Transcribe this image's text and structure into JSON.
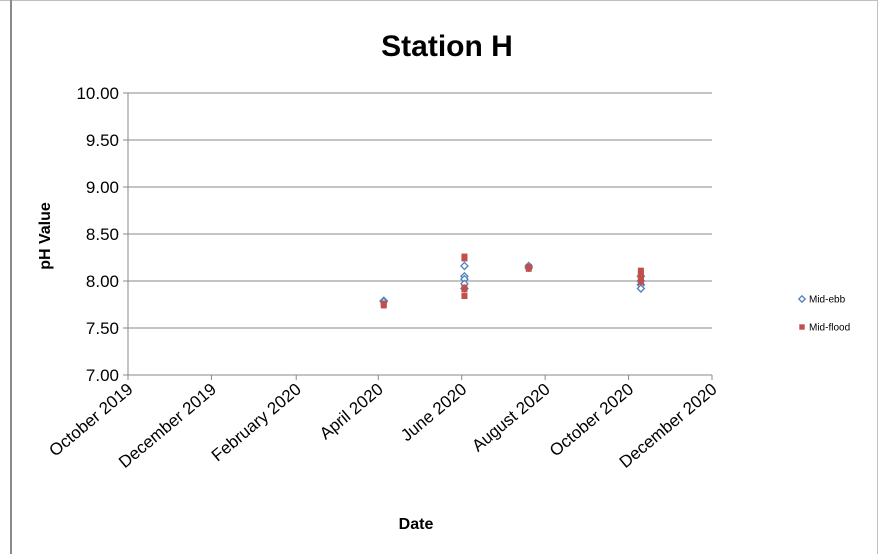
{
  "chart_data": {
    "type": "scatter",
    "title": "Station H",
    "xlabel": "Date",
    "ylabel": "pH Value",
    "ylim": [
      7.0,
      10.0
    ],
    "yticks": [
      "7.00",
      "7.50",
      "8.00",
      "8.50",
      "9.00",
      "9.50",
      "10.00"
    ],
    "xlim": [
      "2019-10-01",
      "2020-12-01"
    ],
    "xticks": [
      {
        "date": "2019-10-01",
        "label": "October 2019"
      },
      {
        "date": "2019-12-01",
        "label": "December 2019"
      },
      {
        "date": "2020-02-01",
        "label": "February 2020"
      },
      {
        "date": "2020-04-01",
        "label": "April 2020"
      },
      {
        "date": "2020-06-01",
        "label": "June 2020"
      },
      {
        "date": "2020-08-01",
        "label": "August 2020"
      },
      {
        "date": "2020-10-01",
        "label": "October 2020"
      },
      {
        "date": "2020-12-01",
        "label": "December 2020"
      }
    ],
    "grid": "horizontal",
    "legend_position": "right",
    "series": [
      {
        "name": "Mid-ebb",
        "marker": "diamond",
        "color": "#4F81BD",
        "points": [
          {
            "x": "2020-04-05",
            "y": 7.79
          },
          {
            "x": "2020-04-05",
            "y": 7.78
          },
          {
            "x": "2020-06-03",
            "y": 8.16
          },
          {
            "x": "2020-06-03",
            "y": 8.05
          },
          {
            "x": "2020-06-03",
            "y": 8.02
          },
          {
            "x": "2020-06-03",
            "y": 7.97
          },
          {
            "x": "2020-06-03",
            "y": 7.92
          },
          {
            "x": "2020-07-20",
            "y": 8.16
          },
          {
            "x": "2020-07-20",
            "y": 8.14
          },
          {
            "x": "2020-10-10",
            "y": 8.05
          },
          {
            "x": "2020-10-10",
            "y": 8.0
          },
          {
            "x": "2020-10-10",
            "y": 7.96
          },
          {
            "x": "2020-10-10",
            "y": 7.92
          }
        ]
      },
      {
        "name": "Mid-flood",
        "marker": "square",
        "color": "#C0504D",
        "points": [
          {
            "x": "2020-04-05",
            "y": 7.76
          },
          {
            "x": "2020-04-05",
            "y": 7.74
          },
          {
            "x": "2020-06-03",
            "y": 8.26
          },
          {
            "x": "2020-06-03",
            "y": 8.24
          },
          {
            "x": "2020-06-03",
            "y": 7.93
          },
          {
            "x": "2020-06-03",
            "y": 7.91
          },
          {
            "x": "2020-06-03",
            "y": 7.84
          },
          {
            "x": "2020-07-20",
            "y": 8.15
          },
          {
            "x": "2020-07-20",
            "y": 8.13
          },
          {
            "x": "2020-10-10",
            "y": 8.11
          },
          {
            "x": "2020-10-10",
            "y": 8.08
          },
          {
            "x": "2020-10-10",
            "y": 8.05
          },
          {
            "x": "2020-10-10",
            "y": 8.02
          },
          {
            "x": "2020-10-10",
            "y": 7.99
          }
        ]
      }
    ]
  }
}
